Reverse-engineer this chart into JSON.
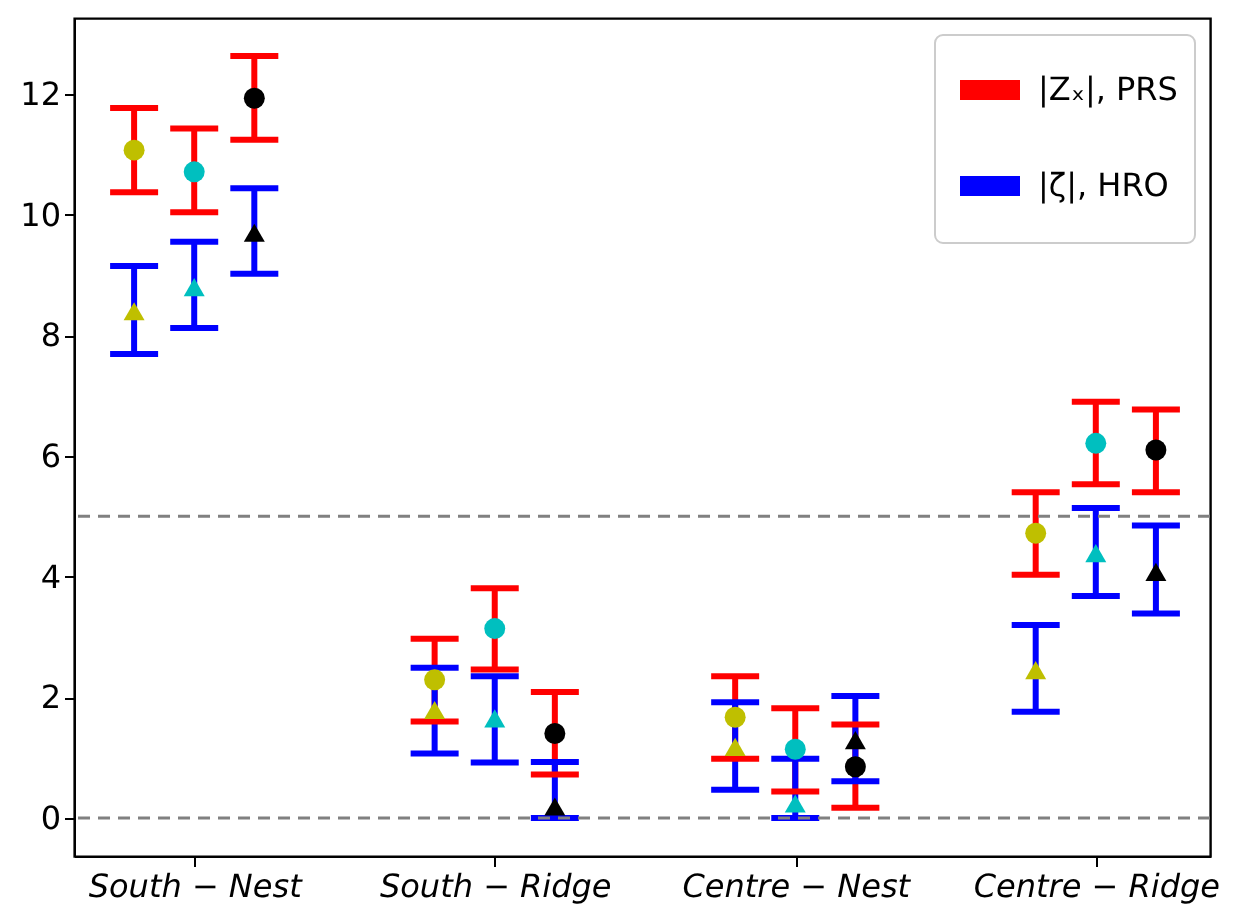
{
  "chart_data": {
    "type": "scatter",
    "categories": [
      "South − Nest",
      "South − Ridge",
      "Centre − Nest",
      "Centre − Ridge"
    ],
    "ylim": [
      -0.63,
      13.26
    ],
    "yticks": [
      0,
      2,
      4,
      6,
      8,
      10,
      12
    ],
    "series": [
      {
        "name": "|Zₓ|, PRS",
        "color": "#ff0000",
        "marker": "circle",
        "colors": [
          "#bfbf00",
          "#bfbf00",
          "#bfbf00",
          "#bfbf00"
        ],
        "values": [
          11.07,
          2.29,
          1.67,
          4.72
        ],
        "errors": [
          [
            10.37,
            11.77
          ],
          [
            1.6,
            2.97
          ],
          [
            0.98,
            2.35
          ],
          [
            4.03,
            5.4
          ]
        ]
      },
      {
        "name": "|ζ|, HRO",
        "color": "#0000ff",
        "marker": "triangle",
        "colors": [
          "#bfbf00",
          "#bfbf00",
          "#bfbf00",
          "#bfbf00"
        ],
        "values": [
          8.4,
          1.79,
          1.18,
          2.45
        ],
        "errors": [
          [
            7.69,
            9.15
          ],
          [
            1.07,
            2.49
          ],
          [
            0.47,
            1.92
          ],
          [
            1.76,
            3.2
          ]
        ]
      },
      {
        "color": "#ff0000",
        "marker": "circle",
        "colors": [
          "#00bfbf",
          "#00bfbf",
          "#00bfbf",
          "#00bfbf"
        ],
        "values": [
          10.71,
          3.14,
          1.14,
          6.21
        ],
        "errors": [
          [
            10.04,
            11.43
          ],
          [
            2.46,
            3.81
          ],
          [
            0.44,
            1.82
          ],
          [
            5.53,
            6.9
          ]
        ]
      },
      {
        "color": "#0000ff",
        "marker": "triangle",
        "colors": [
          "#00bfbf",
          "#00bfbf",
          "#00bfbf",
          "#00bfbf"
        ],
        "values": [
          8.8,
          1.65,
          0.24,
          4.39
        ],
        "errors": [
          [
            8.12,
            9.55
          ],
          [
            0.92,
            2.35
          ],
          [
            0,
            0.98
          ],
          [
            3.68,
            5.14
          ]
        ]
      },
      {
        "color": "#ff0000",
        "marker": "circle",
        "colors": [
          "#000000",
          "#000000",
          "#000000",
          "#000000"
        ],
        "values": [
          11.93,
          1.4,
          0.85,
          6.1
        ],
        "errors": [
          [
            11.24,
            12.63
          ],
          [
            0.72,
            2.09
          ],
          [
            0.17,
            1.55
          ],
          [
            5.4,
            6.77
          ]
        ]
      },
      {
        "color": "#0000ff",
        "marker": "triangle",
        "colors": [
          "#000000",
          "#000000",
          "#000000",
          "#000000"
        ],
        "values": [
          9.7,
          0.19,
          1.29,
          4.08
        ],
        "errors": [
          [
            9.02,
            10.44
          ],
          [
            0,
            0.93
          ],
          [
            0.61,
            2.02
          ],
          [
            3.39,
            4.85
          ]
        ]
      }
    ],
    "ref_lines": [
      {
        "axis": "y",
        "value": 5,
        "color": "#808080",
        "line_style": "dashed"
      },
      {
        "axis": "y",
        "value": 0,
        "color": "#808080",
        "line_style": "dashed"
      }
    ],
    "legend": "top right",
    "grid": false
  }
}
